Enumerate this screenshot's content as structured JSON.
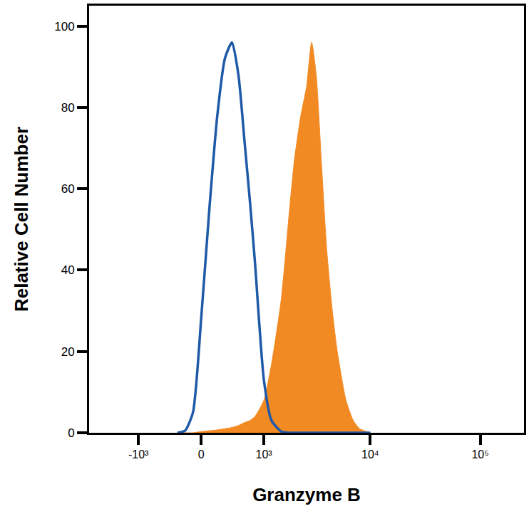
{
  "chart_data": {
    "type": "line",
    "x_label": "Granzyme B",
    "y_label": "Relative Cell Number",
    "log": "x",
    "grid": false,
    "x": [
      -300,
      -200,
      -100,
      0,
      100,
      200,
      300,
      400,
      500,
      600,
      700,
      800,
      1000,
      1200,
      1500,
      1800,
      2000,
      2300,
      2600,
      2900,
      3200,
      3600,
      4000,
      4500,
      5000,
      6000,
      7000,
      8000,
      10000
    ],
    "series": [
      {
        "type": "area",
        "color": "#f28a24",
        "values": [
          0,
          0,
          0,
          0.3,
          0.5,
          0.7,
          1,
          1.3,
          1.8,
          2.5,
          3,
          4,
          8,
          17,
          33,
          55,
          67,
          78,
          85,
          96,
          88,
          65,
          45,
          30,
          20,
          8,
          3,
          1,
          0
        ]
      },
      {
        "type": "line",
        "color": "#1f5aa8",
        "values": [
          0,
          0.5,
          5,
          28,
          55,
          78,
          92,
          96,
          88,
          72,
          57,
          42,
          13,
          3,
          0.3,
          0,
          0,
          0,
          0,
          0,
          0,
          0,
          0,
          0,
          0,
          0,
          0,
          0,
          0
        ]
      }
    ],
    "xlim": [
      -3000,
      250000
    ],
    "xticks": [
      {
        "value": -1000,
        "label": "-10³"
      },
      0,
      {
        "value": 1000,
        "label": "10³"
      },
      {
        "value": 10000,
        "label": "10⁴"
      },
      {
        "value": 100000,
        "label": "10⁵"
      }
    ],
    "ylim": [
      0,
      105
    ],
    "yticks": [
      0,
      20,
      40,
      60,
      80,
      100
    ]
  }
}
